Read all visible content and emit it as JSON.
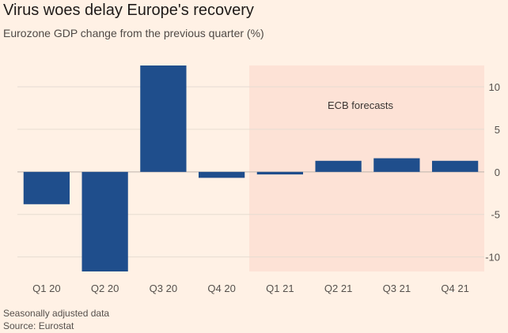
{
  "title": "Virus woes delay Europe's recovery",
  "subtitle": "Eurozone GDP change from the previous quarter (%)",
  "footnote": "Seasonally adjusted data",
  "source": "Source: Eurostat",
  "colors": {
    "background": "#fff1e5",
    "bar": "#1f4e8c",
    "forecast_band": "#fde2d6",
    "grid": "#e6dcd2",
    "zero_line": "#bdb4ac"
  },
  "chart_data": {
    "type": "bar",
    "title": "Virus woes delay Europe's recovery",
    "subtitle": "Eurozone GDP change from the previous quarter (%)",
    "categories": [
      "Q1 20",
      "Q2 20",
      "Q3 20",
      "Q4 20",
      "Q1 21",
      "Q2 21",
      "Q3 21",
      "Q4 21"
    ],
    "values": [
      -3.8,
      -11.7,
      12.5,
      -0.7,
      -0.3,
      1.3,
      1.6,
      1.3
    ],
    "ylim": [
      -11.7,
      12.5
    ],
    "yticks": [
      10,
      5,
      0,
      -5,
      -10
    ],
    "ytick_labels": [
      "10",
      "5",
      "0",
      "-5",
      "-10"
    ],
    "y_axis_side": "right",
    "grid": true,
    "forecast_region": {
      "from": "Q1 21",
      "to": "Q4 21",
      "label": "ECB forecasts"
    }
  }
}
